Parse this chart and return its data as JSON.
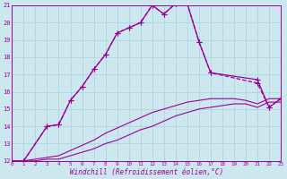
{
  "xlabel": "Windchill (Refroidissement éolien,°C)",
  "bg_color": "#cce8ee",
  "grid_color": "#aad0dc",
  "line_color": "#990099",
  "xmin": 0,
  "xmax": 23,
  "ymin": 12,
  "ymax": 21,
  "series": [
    {
      "x": [
        0,
        1,
        2,
        3,
        4,
        5,
        6,
        7,
        8,
        9,
        10,
        11,
        12,
        13,
        14,
        15,
        16,
        17,
        18,
        19,
        20,
        21,
        22,
        23
      ],
      "y": [
        12,
        12,
        12,
        12.1,
        12.1,
        12.3,
        12.5,
        12.7,
        13.0,
        13.2,
        13.5,
        13.8,
        14.0,
        14.3,
        14.6,
        14.8,
        15.0,
        15.1,
        15.2,
        15.3,
        15.3,
        15.1,
        15.4,
        15.4
      ],
      "marker": null,
      "linestyle": "-",
      "linewidth": 0.8,
      "markersize": 3
    },
    {
      "x": [
        0,
        1,
        2,
        3,
        4,
        5,
        6,
        7,
        8,
        9,
        10,
        11,
        12,
        13,
        14,
        15,
        16,
        17,
        18,
        19,
        20,
        21,
        22,
        23
      ],
      "y": [
        12,
        12,
        12.1,
        12.2,
        12.3,
        12.6,
        12.9,
        13.2,
        13.6,
        13.9,
        14.2,
        14.5,
        14.8,
        15.0,
        15.2,
        15.4,
        15.5,
        15.6,
        15.6,
        15.6,
        15.5,
        15.3,
        15.6,
        15.6
      ],
      "marker": null,
      "linestyle": "-",
      "linewidth": 0.8,
      "markersize": 3
    },
    {
      "x": [
        0,
        1,
        3,
        4,
        5,
        6,
        7,
        8,
        9,
        10,
        11,
        12,
        13,
        14,
        15,
        16,
        17,
        21,
        22,
        23
      ],
      "y": [
        12,
        12,
        14.0,
        14.1,
        15.5,
        16.3,
        17.3,
        18.15,
        19.4,
        19.7,
        20.0,
        21.0,
        20.5,
        21.1,
        21.1,
        18.9,
        17.1,
        16.7,
        15.1,
        15.6
      ],
      "marker": "+",
      "linestyle": "-",
      "linewidth": 0.9,
      "markersize": 4
    },
    {
      "x": [
        0,
        1,
        3,
        4,
        5,
        6,
        7,
        8,
        9,
        10,
        11,
        12,
        13,
        14,
        15,
        16,
        17,
        21,
        22,
        23
      ],
      "y": [
        12,
        12,
        14.0,
        14.1,
        15.5,
        16.3,
        17.3,
        18.15,
        19.4,
        19.7,
        20.0,
        21.0,
        20.5,
        21.1,
        21.1,
        18.9,
        17.1,
        16.5,
        15.1,
        15.6
      ],
      "marker": "+",
      "linestyle": "--",
      "linewidth": 0.9,
      "markersize": 4
    }
  ],
  "xtick_labels": [
    "0",
    "1",
    "2",
    "3",
    "4",
    "5",
    "6",
    "7",
    "8",
    "9",
    "10",
    "11",
    "12",
    "13",
    "14",
    "15",
    "16",
    "17",
    "18",
    "19",
    "20",
    "21",
    "22",
    "23"
  ],
  "ytick_labels": [
    "12",
    "13",
    "14",
    "15",
    "16",
    "17",
    "18",
    "19",
    "20",
    "21"
  ]
}
